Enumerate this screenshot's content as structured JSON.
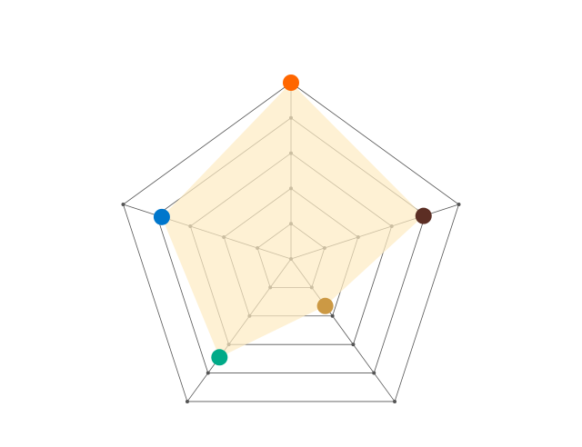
{
  "chart_data": {
    "type": "radar",
    "title": "",
    "axes_count": 5,
    "levels": 5,
    "range": [
      0,
      5
    ],
    "grid": true,
    "legend": "none",
    "area_color": "#fdebc2",
    "grid_color": "#555555",
    "series": [
      {
        "values": [
          5,
          3.95,
          1.65,
          3.45,
          3.85
        ],
        "point_colors": [
          "#ff6600",
          "#5c2e24",
          "#cc9944",
          "#00aa88",
          "#0077cc"
        ]
      }
    ]
  }
}
